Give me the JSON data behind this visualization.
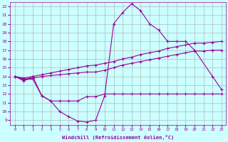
{
  "xlabel": "Windchill (Refroidissement éolien,°C)",
  "curve_top_x": [
    0,
    1,
    2,
    3,
    4,
    5,
    6,
    7,
    8,
    9,
    10,
    11,
    12,
    13,
    14,
    15,
    16,
    17,
    18,
    19,
    20,
    22,
    23
  ],
  "curve_top_y": [
    14,
    13.5,
    14,
    11.8,
    11.2,
    10.0,
    9.4,
    8.9,
    8.8,
    9.0,
    11.8,
    20.0,
    21.3,
    22.3,
    21.5,
    20.0,
    19.3,
    18.0,
    18.0,
    18.0,
    17.0,
    14.0,
    12.5
  ],
  "line_upper_x": [
    0,
    1,
    2,
    3,
    4,
    5,
    6,
    7,
    8,
    9,
    10,
    11,
    12,
    13,
    14,
    15,
    16,
    17,
    18,
    19,
    20,
    21,
    22,
    23
  ],
  "line_upper_y": [
    14.0,
    13.8,
    14.0,
    14.2,
    14.4,
    14.6,
    14.8,
    15.0,
    15.2,
    15.3,
    15.5,
    15.7,
    16.0,
    16.2,
    16.5,
    16.7,
    16.9,
    17.2,
    17.4,
    17.6,
    17.8,
    17.8,
    17.9,
    18.0
  ],
  "line_lower_x": [
    0,
    1,
    2,
    3,
    4,
    5,
    6,
    7,
    8,
    9,
    10,
    11,
    12,
    13,
    14,
    15,
    16,
    17,
    18,
    19,
    20,
    21,
    22,
    23
  ],
  "line_lower_y": [
    14.0,
    13.7,
    13.8,
    14.0,
    14.1,
    14.2,
    14.3,
    14.4,
    14.5,
    14.5,
    14.7,
    15.0,
    15.3,
    15.5,
    15.7,
    15.9,
    16.1,
    16.3,
    16.5,
    16.7,
    16.9,
    16.9,
    17.0,
    17.0
  ],
  "line_flat_x": [
    0,
    1,
    2,
    3,
    4,
    5,
    6,
    7,
    8,
    9,
    10,
    11,
    12,
    13,
    14,
    15,
    16,
    17,
    18,
    19,
    20,
    21,
    22,
    23
  ],
  "line_flat_y": [
    14.0,
    13.6,
    13.7,
    11.8,
    11.2,
    11.2,
    11.2,
    11.2,
    11.7,
    11.7,
    12.0,
    12.0,
    12.0,
    12.0,
    12.0,
    12.0,
    12.0,
    12.0,
    12.0,
    12.0,
    12.0,
    12.0,
    12.0,
    12.0
  ],
  "ylim": [
    8.5,
    22.5
  ],
  "xlim": [
    -0.5,
    23.5
  ],
  "yticks": [
    9,
    10,
    11,
    12,
    13,
    14,
    15,
    16,
    17,
    18,
    19,
    20,
    21,
    22
  ],
  "xticks": [
    0,
    1,
    2,
    3,
    4,
    5,
    6,
    7,
    8,
    9,
    10,
    11,
    12,
    13,
    14,
    15,
    16,
    17,
    18,
    19,
    20,
    21,
    22,
    23
  ],
  "line_color": "#990099",
  "bg_color": "#ccffff",
  "grid_color": "#aaaaaa"
}
